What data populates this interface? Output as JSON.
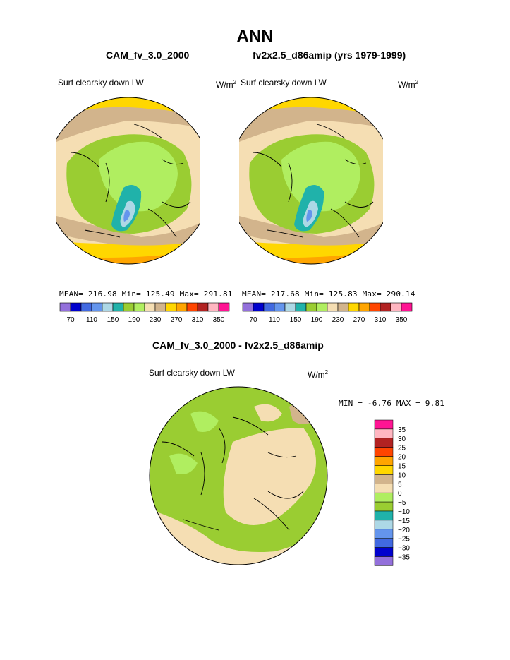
{
  "page_title": "ANN",
  "colors": {
    "scale": [
      "#9370db",
      "#0000cd",
      "#4169e1",
      "#6495ed",
      "#add8e6",
      "#20b2aa",
      "#9acd32",
      "#b0ee60",
      "#f5deb3",
      "#d2b48c",
      "#ffd700",
      "#ffa500",
      "#ff4500",
      "#b22222",
      "#ffb6c1",
      "#ff1493"
    ],
    "ocean_warm": "#ffd700",
    "coast": "#000000"
  },
  "panel1": {
    "title": "CAM_fv_3.0_2000",
    "var_label": "Surf clearsky down LW",
    "unit_base": "W/m",
    "unit_exp": "2",
    "stats": "MEAN= 216.98  Min= 125.49  Max= 291.81",
    "colorbar_labels": [
      "70",
      "110",
      "150",
      "190",
      "230",
      "270",
      "310",
      "350"
    ]
  },
  "panel2": {
    "title": "fv2x2.5_d86amip (yrs 1979-1999)",
    "var_label": "Surf clearsky down LW",
    "unit_base": "W/m",
    "unit_exp": "2",
    "stats": "MEAN= 217.68  Min= 125.83  Max= 290.14",
    "colorbar_labels": [
      "70",
      "110",
      "150",
      "190",
      "230",
      "270",
      "310",
      "350"
    ]
  },
  "panel3": {
    "title": "CAM_fv_3.0_2000 - fv2x2.5_d86amip",
    "var_label": "Surf clearsky down LW",
    "unit_base": "W/m",
    "unit_exp": "2",
    "minmax": "MIN =   -6.76  MAX =    9.81",
    "colorbar_labels": [
      "35",
      "30",
      "25",
      "20",
      "15",
      "10",
      "5",
      "0",
      "−5",
      "−10",
      "−15",
      "−20",
      "−25",
      "−30",
      "−35"
    ]
  }
}
